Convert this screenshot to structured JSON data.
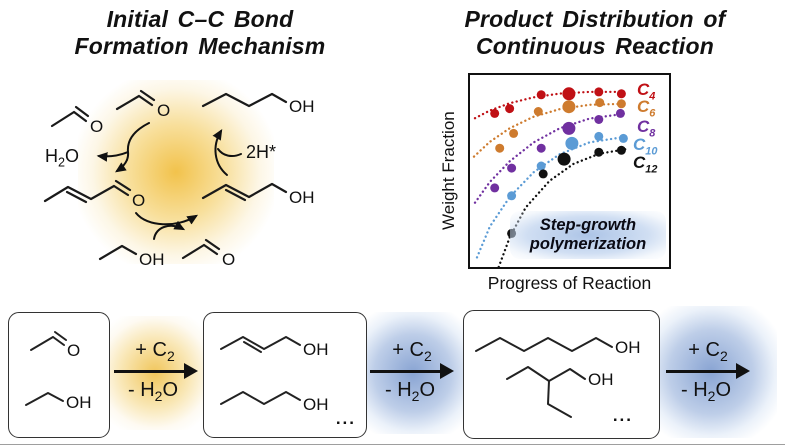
{
  "mechanism": {
    "title": "Initial C–C Bond Formation Mechanism",
    "glow_color": "#F1BF42",
    "water_label": [
      {
        "t": "H"
      },
      {
        "t": "2",
        "sub": true
      },
      {
        "t": "O"
      }
    ],
    "hydrogen_label": "2H*",
    "molecules": [
      {
        "name": "acetaldehyde",
        "label": "O"
      },
      {
        "name": "acetaldehyde",
        "label": "O"
      },
      {
        "name": "1-butanol",
        "label": "OH"
      },
      {
        "name": "crotonaldehyde",
        "label": "O"
      },
      {
        "name": "crotyl alcohol",
        "label": "OH"
      },
      {
        "name": "ethanol",
        "label": "OH"
      },
      {
        "name": "acetaldehyde",
        "label": "O"
      }
    ]
  },
  "chart_data": {
    "type": "scatter",
    "title": "Product Distribution of Continuous Reaction",
    "xlabel": "Progress of Reaction",
    "ylabel": "Weight Fraction",
    "annotation": "Step-growth polymerization",
    "annotation_bg": "#AEC6E8",
    "x_range": [
      0,
      1
    ],
    "y_range": [
      0,
      1
    ],
    "grid": false,
    "ticks": "none",
    "legend_position": "inside-right",
    "series": [
      {
        "name": "C4",
        "symbol": "C",
        "subscript": "4",
        "color": "#C01015",
        "points": [
          [
            0.124,
            0.8,
            4.5
          ],
          [
            0.199,
            0.825,
            4.5
          ],
          [
            0.358,
            0.897,
            4.5
          ],
          [
            0.497,
            0.902,
            6.5
          ],
          [
            0.647,
            0.912,
            4.5
          ],
          [
            0.761,
            0.902,
            4.5
          ]
        ],
        "trend": [
          [
            0.025,
            0.775
          ],
          [
            0.1,
            0.815
          ],
          [
            0.2,
            0.853
          ],
          [
            0.32,
            0.884
          ],
          [
            0.45,
            0.903
          ],
          [
            0.6,
            0.912
          ],
          [
            0.78,
            0.912
          ]
        ]
      },
      {
        "name": "C6",
        "symbol": "C",
        "subscript": "6",
        "color": "#CE7B2E",
        "points": [
          [
            0.149,
            0.619,
            4.5
          ],
          [
            0.219,
            0.696,
            4.5
          ],
          [
            0.343,
            0.81,
            4.5
          ],
          [
            0.497,
            0.835,
            6.5
          ],
          [
            0.652,
            0.856,
            4.5
          ],
          [
            0.761,
            0.85,
            4.5
          ]
        ],
        "trend": [
          [
            0.02,
            0.575
          ],
          [
            0.1,
            0.652
          ],
          [
            0.2,
            0.723
          ],
          [
            0.32,
            0.783
          ],
          [
            0.45,
            0.822
          ],
          [
            0.6,
            0.845
          ],
          [
            0.78,
            0.85
          ]
        ]
      },
      {
        "name": "C8",
        "symbol": "C",
        "subscript": "8",
        "color": "#7030A0",
        "points": [
          [
            0.124,
            0.412,
            4.5
          ],
          [
            0.209,
            0.515,
            4.5
          ],
          [
            0.358,
            0.619,
            4.5
          ],
          [
            0.497,
            0.722,
            6.5
          ],
          [
            0.647,
            0.768,
            4.5
          ],
          [
            0.756,
            0.8,
            4.5
          ]
        ],
        "trend": [
          [
            0.025,
            0.335
          ],
          [
            0.1,
            0.443
          ],
          [
            0.2,
            0.551
          ],
          [
            0.32,
            0.649
          ],
          [
            0.45,
            0.722
          ],
          [
            0.6,
            0.773
          ],
          [
            0.78,
            0.799
          ]
        ]
      },
      {
        "name": "C10",
        "symbol": "C",
        "subscript": "10",
        "color": "#5B9BD5",
        "points": [
          [
            0.209,
            0.371,
            4.5
          ],
          [
            0.358,
            0.526,
            4.5
          ],
          [
            0.512,
            0.644,
            6.5
          ],
          [
            0.647,
            0.68,
            4.5
          ],
          [
            0.771,
            0.67,
            4.5
          ]
        ],
        "trend": [
          [
            0.035,
            0.05
          ],
          [
            0.1,
            0.211
          ],
          [
            0.2,
            0.365
          ],
          [
            0.32,
            0.494
          ],
          [
            0.45,
            0.587
          ],
          [
            0.6,
            0.649
          ],
          [
            0.78,
            0.678
          ]
        ]
      },
      {
        "name": "C12",
        "symbol": "C",
        "subscript": "12",
        "color": "#111111",
        "points": [
          [
            0.209,
            0.175,
            4.5
          ],
          [
            0.368,
            0.485,
            4.5
          ],
          [
            0.473,
            0.562,
            6.5
          ],
          [
            0.647,
            0.598,
            4.5
          ],
          [
            0.761,
            0.608,
            4.5
          ]
        ],
        "trend": [
          [
            0.144,
            0.0
          ],
          [
            0.2,
            0.155
          ],
          [
            0.28,
            0.31
          ],
          [
            0.4,
            0.449
          ],
          [
            0.52,
            0.537
          ],
          [
            0.65,
            0.59
          ],
          [
            0.78,
            0.613
          ]
        ]
      }
    ]
  },
  "scheme": {
    "boxes": [
      {
        "molecules": [
          {
            "name": "acetaldehyde",
            "label": "O"
          },
          {
            "name": "ethanol",
            "label": "OH"
          }
        ],
        "more": ""
      },
      {
        "molecules": [
          {
            "name": "crotyl alcohol",
            "label": "OH"
          },
          {
            "name": "1-butanol",
            "label": "OH"
          }
        ],
        "more": "..."
      },
      {
        "molecules": [
          {
            "name": "1-hexanol",
            "label": "OH"
          },
          {
            "name": "2-ethyl-1-butanol",
            "label": "OH"
          }
        ],
        "more": "..."
      }
    ],
    "arrows": [
      {
        "glow_color": "#EFC04A",
        "add": [
          {
            "t": "+ C"
          },
          {
            "t": "2",
            "sub": true
          }
        ],
        "remove": [
          {
            "t": "- H"
          },
          {
            "t": "2",
            "sub": true
          },
          {
            "t": "O"
          }
        ]
      },
      {
        "glow_color": "#7B9FD4",
        "add": [
          {
            "t": "+ C"
          },
          {
            "t": "2",
            "sub": true
          }
        ],
        "remove": [
          {
            "t": "- H"
          },
          {
            "t": "2",
            "sub": true
          },
          {
            "t": "O"
          }
        ]
      },
      {
        "glow_color": "#7B9FD4",
        "add": [
          {
            "t": "+ C"
          },
          {
            "t": "2",
            "sub": true
          }
        ],
        "remove": [
          {
            "t": "- H"
          },
          {
            "t": "2",
            "sub": true
          },
          {
            "t": "O"
          }
        ]
      }
    ]
  }
}
